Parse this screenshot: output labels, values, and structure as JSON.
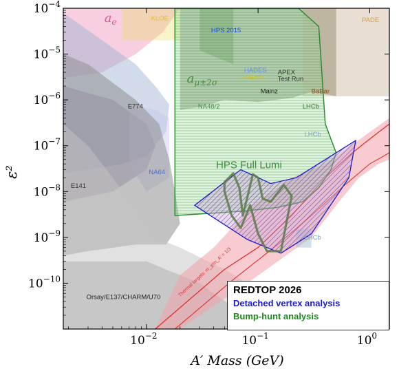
{
  "chart_data": {
    "type": "area",
    "xlabel": "A′ Mass (GeV)",
    "ylabel": "ε²",
    "xscale": "log",
    "yscale": "log",
    "xlim": [
      0.0018,
      1.5
    ],
    "ylim": [
      1e-11,
      0.0001
    ],
    "x_ticks": [
      {
        "value": 0.01,
        "base": "10",
        "exp": "−2"
      },
      {
        "value": 0.1,
        "base": "10",
        "exp": "−1"
      },
      {
        "value": 1,
        "base": "10",
        "exp": "0"
      }
    ],
    "y_ticks": [
      {
        "value": 0.0001,
        "base": "10",
        "exp": "−4"
      },
      {
        "value": 1e-05,
        "base": "10",
        "exp": "−5"
      },
      {
        "value": 1e-06,
        "base": "10",
        "exp": "−6"
      },
      {
        "value": 1e-07,
        "base": "10",
        "exp": "−7"
      },
      {
        "value": 1e-08,
        "base": "10",
        "exp": "−8"
      },
      {
        "value": 1e-09,
        "base": "10",
        "exp": "−9"
      },
      {
        "value": 1e-10,
        "base": "10",
        "exp": "−10"
      }
    ],
    "series": [
      {
        "name": "HPS Full Lumi",
        "color": "#2e8b2e",
        "points": [
          [
            0.018,
            3e-09
          ],
          [
            0.018,
            0.0001
          ],
          [
            0.23,
            0.0001
          ],
          [
            0.35,
            4e-05
          ],
          [
            0.4,
            3e-07
          ],
          [
            0.5,
            7e-08
          ],
          [
            0.45,
            3e-08
          ],
          [
            0.35,
            1.2e-08
          ],
          [
            0.25,
            6e-09
          ],
          [
            0.15,
            4.5e-09
          ],
          [
            0.08,
            3.8e-09
          ],
          [
            0.05,
            3.5e-09
          ]
        ]
      },
      {
        "name": "Detached vertex analysis",
        "color": "#1a1acc",
        "points": [
          [
            0.027,
            5e-09
          ],
          [
            0.07,
            3e-08
          ],
          [
            0.13,
            1.5e-08
          ],
          [
            0.22,
            2e-08
          ],
          [
            0.4,
            5e-08
          ],
          [
            0.75,
            1.3e-07
          ],
          [
            0.65,
            2e-08
          ],
          [
            0.3,
            1.2e-09
          ],
          [
            0.16,
            4.5e-10
          ],
          [
            0.08,
            9e-10
          ]
        ]
      },
      {
        "name": "Bump-hunt analysis",
        "color": "#4a7a3a",
        "points": [
          [
            0.05,
            1.6e-08
          ],
          [
            0.06,
            2.5e-08
          ],
          [
            0.068,
            1.2e-08
          ],
          [
            0.073,
            3e-09
          ],
          [
            0.09,
            2.4e-08
          ],
          [
            0.1,
            2e-08
          ],
          [
            0.11,
            7e-09
          ],
          [
            0.13,
            6e-09
          ],
          [
            0.17,
            1.4e-08
          ],
          [
            0.2,
            8e-09
          ],
          [
            0.16,
            5e-10
          ],
          [
            0.12,
            5e-10
          ],
          [
            0.1,
            1.2e-09
          ],
          [
            0.085,
            5e-09
          ],
          [
            0.07,
            1.6e-09
          ],
          [
            0.058,
            3e-09
          ],
          [
            0.05,
            1e-08
          ]
        ]
      }
    ],
    "annotations": [
      {
        "text": "a",
        "sub": "e",
        "x": 0.0042,
        "y": 5e-05,
        "color": "#e0559b"
      },
      {
        "text": "a",
        "sub": "μ±2σ",
        "x": 0.023,
        "y": 2.4e-06,
        "color": "#3c8f3c"
      },
      {
        "text": "KLOE",
        "x": 0.011,
        "y": 5.5e-05,
        "color": "#e0c030"
      },
      {
        "text": "PADE",
        "x": 0.85,
        "y": 5e-05,
        "color": "#e0a030"
      },
      {
        "text": "HPS 2015",
        "x": 0.038,
        "y": 3e-05,
        "color": "#1a4ad0"
      },
      {
        "text": "HADES",
        "x": 0.075,
        "y": 4e-06,
        "color": "#6a8ae0"
      },
      {
        "text": "PHENIX",
        "x": 0.07,
        "y": 2.8e-06,
        "color": "#d0c020"
      },
      {
        "text": "APEX",
        "x": 0.15,
        "y": 3.6e-06,
        "color": "#333333"
      },
      {
        "text": "Test Run",
        "x": 0.15,
        "y": 2.6e-06,
        "color": "#333333"
      },
      {
        "text": "Mainz",
        "x": 0.105,
        "y": 1.4e-06,
        "color": "#222222"
      },
      {
        "text": "BaBar",
        "x": 0.3,
        "y": 1.4e-06,
        "color": "#8b4a1a"
      },
      {
        "text": "LHCb",
        "x": 0.25,
        "y": 6.5e-07,
        "color": "#3a7a3a"
      },
      {
        "text": "LHCb",
        "x": 0.26,
        "y": 1.6e-07,
        "color": "#7aa0c0"
      },
      {
        "text": "NA48/2",
        "x": 0.029,
        "y": 6.5e-07,
        "color": "#3c8f3c"
      },
      {
        "text": "E774",
        "x": 0.0068,
        "y": 6.5e-07,
        "color": "#333333"
      },
      {
        "text": "NA64",
        "x": 0.0105,
        "y": 2.4e-08,
        "color": "#4a6ad0"
      },
      {
        "text": "E141",
        "x": 0.0021,
        "y": 1.2e-08,
        "color": "#333333"
      },
      {
        "text": "HPS Full Lumi",
        "x": 0.042,
        "y": 3.2e-08,
        "color": "#3c8f3c"
      },
      {
        "text": "LHCb",
        "x": 0.26,
        "y": 9e-10,
        "color": "#7aa0c0"
      },
      {
        "text": "Orsay/E137/CHARM/U70",
        "x": 0.0029,
        "y": 4.5e-11,
        "color": "#222222"
      },
      {
        "text": "Thermal targets: m_χ/m_A′ = 1/3",
        "x": 0.02,
        "y": 5e-11,
        "color": "#e03030"
      }
    ]
  },
  "legend": {
    "title": "REDTOP 2026",
    "entries": [
      {
        "label": "Detached vertex analysis",
        "color": "#1a1acc"
      },
      {
        "label": "Bump-hunt analysis",
        "color": "#1a8a1a"
      }
    ]
  }
}
